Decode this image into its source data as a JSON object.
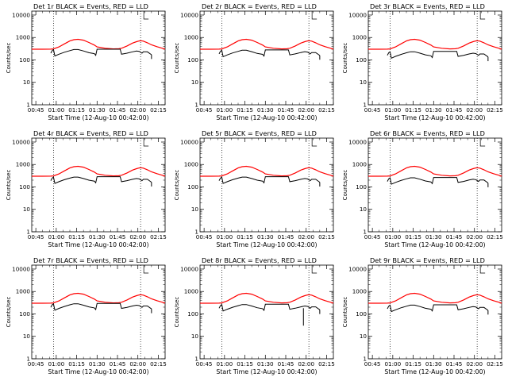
{
  "chart_data": {
    "type": "line",
    "shared": {
      "xlabel": "Start Time (12-Aug-10 00:42:00)",
      "ylabel": "Counts/sec",
      "x_tick_labels": [
        "00:45",
        "01:00",
        "01:15",
        "01:30",
        "01:45",
        "02:00",
        "02:15"
      ],
      "x_ticks_minutes": [
        45,
        60,
        75,
        90,
        105,
        120,
        135
      ],
      "xlim_minutes": [
        42,
        140
      ],
      "y_tick_labels": [
        "1",
        "10",
        "100",
        "1000",
        "10000"
      ],
      "y_ticks": [
        1,
        10,
        100,
        1000,
        10000
      ],
      "ylim": [
        1,
        15000
      ],
      "y_scale": "log",
      "dotted_vlines_minutes": [
        58,
        122
      ],
      "colors": {
        "events": "#000000",
        "lld": "#ff0000"
      },
      "series_names": [
        "BLACK = Events",
        "RED = LLD"
      ]
    },
    "panels": [
      {
        "title": "Det 1r BLACK = Events, RED = LLD",
        "events_scale": 1.0,
        "spike_min": null
      },
      {
        "title": "Det 2r BLACK = Events, RED = LLD",
        "events_scale": 0.93,
        "spike_min": null
      },
      {
        "title": "Det 3r BLACK = Events, RED = LLD",
        "events_scale": 0.8,
        "spike_min": null
      },
      {
        "title": "Det 4r BLACK = Events, RED = LLD",
        "events_scale": 0.95,
        "spike_min": null
      },
      {
        "title": "Det 5r BLACK = Events, RED = LLD",
        "events_scale": 0.95,
        "spike_min": null
      },
      {
        "title": "Det 6r BLACK = Events, RED = LLD",
        "events_scale": 0.88,
        "spike_min": null
      },
      {
        "title": "Det 7r BLACK = Events, RED = LLD",
        "events_scale": 0.98,
        "spike_min": null
      },
      {
        "title": "Det 8r BLACK = Events, RED = LLD",
        "events_scale": 0.9,
        "spike_min": 30
      },
      {
        "title": "Det 9r BLACK = Events, RED = LLD",
        "events_scale": 0.85,
        "spike_min": null
      }
    ],
    "lld_series": {
      "x_minutes": [
        42,
        50,
        56,
        58,
        62,
        66,
        70,
        73,
        76,
        80,
        84,
        88,
        90,
        96,
        102,
        106,
        108,
        112,
        116,
        119,
        121,
        122,
        124,
        127,
        130,
        134,
        138,
        140
      ],
      "y": [
        300,
        300,
        302,
        310,
        380,
        520,
        700,
        800,
        830,
        760,
        600,
        460,
        380,
        330,
        310,
        315,
        330,
        420,
        560,
        650,
        700,
        720,
        690,
        580,
        470,
        390,
        330,
        300
      ]
    },
    "events_series": {
      "x_minutes": [
        56,
        57,
        58,
        59,
        62,
        66,
        70,
        73,
        76,
        80,
        84,
        88,
        89,
        90,
        96,
        102,
        106,
        107,
        108,
        112,
        116,
        119,
        121,
        122,
        123,
        124,
        127,
        130
      ],
      "y": [
        200,
        260,
        290,
        150,
        180,
        220,
        260,
        290,
        290,
        250,
        210,
        190,
        160,
        300,
        300,
        300,
        300,
        300,
        180,
        200,
        230,
        250,
        240,
        220,
        200,
        230,
        230,
        170
      ]
    }
  }
}
